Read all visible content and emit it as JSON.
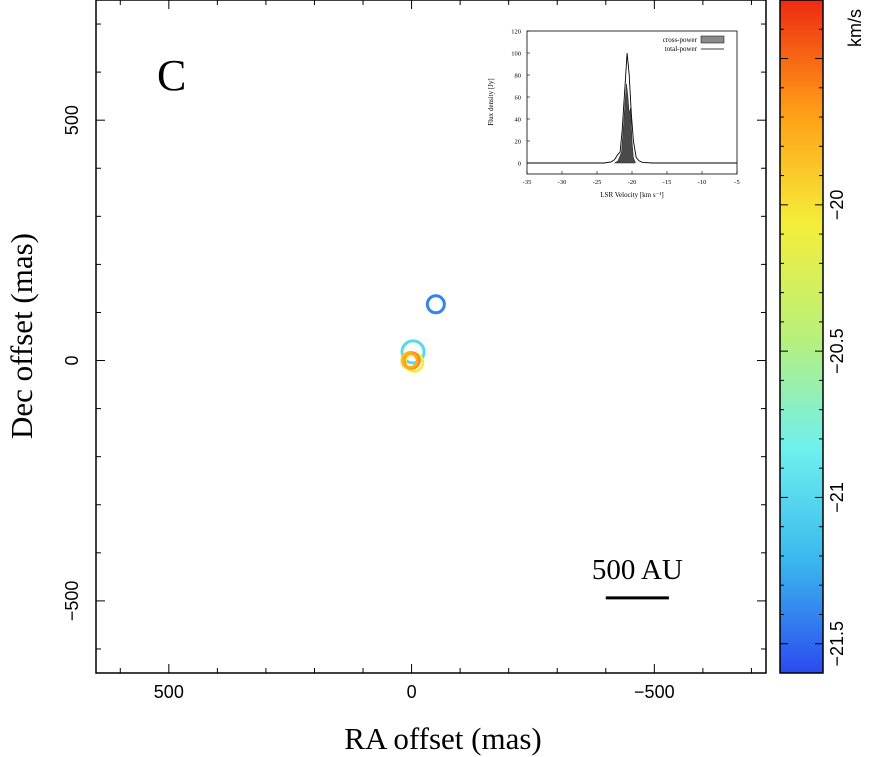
{
  "chart_data": [
    {
      "type": "scatter",
      "panel_label": "C",
      "xlabel": "RA offset (mas)",
      "ylabel": "Dec offset (mas)",
      "xlim": [
        650,
        -730
      ],
      "ylim": [
        -650,
        750
      ],
      "x_ticks": [
        500,
        0,
        -500
      ],
      "y_ticks": [
        500,
        0,
        -500
      ],
      "x_tick_labels": [
        "500",
        "0",
        "−500"
      ],
      "y_tick_labels": [
        "500",
        "0",
        "−500"
      ],
      "grid": false,
      "scale_bar": {
        "label": "500 AU",
        "ra_from": -400,
        "ra_to": -530,
        "dec": -500
      },
      "points": [
        {
          "ra": -50,
          "dec": 117,
          "velocity": -21.4
        },
        {
          "ra": -3,
          "dec": 18,
          "velocity": -21.0
        },
        {
          "ra": -5,
          "dec": -4,
          "velocity": -20.1
        },
        {
          "ra": 3,
          "dec": 0,
          "velocity": -19.95
        },
        {
          "ra": 0,
          "dec": 0,
          "velocity": -19.6
        },
        {
          "ra": 3,
          "dec": 0,
          "velocity": -19.75
        }
      ],
      "colorbar": {
        "label": "km/s",
        "range": [
          -21.6,
          -19.3
        ],
        "ticks": [
          -20,
          -20.5,
          -21,
          -21.5
        ],
        "tick_labels": [
          "−20",
          "−20.5",
          "−21",
          "−21.5"
        ],
        "colors": [
          "#2b4bf0",
          "#3ab8ee",
          "#6ff0ee",
          "#b8f07a",
          "#f5ee3a",
          "#ff9e16",
          "#ee2a12"
        ]
      }
    },
    {
      "type": "area",
      "role": "inset",
      "xlabel": "LSR Velocity [km s⁻¹]",
      "ylabel": "Flux density [Jy]",
      "xlim": [
        -35,
        -5
      ],
      "ylim": [
        -10,
        120
      ],
      "x_ticks": [
        -35,
        -30,
        -25,
        -20,
        -15,
        -10,
        -5
      ],
      "y_ticks": [
        0,
        20,
        40,
        60,
        80,
        100,
        120
      ],
      "legend": [
        "cross-power",
        "total-power"
      ],
      "legend_position": "top-right",
      "series": [
        {
          "name": "cross-power",
          "x": [
            -22.5,
            -22.0,
            -21.5,
            -21.2,
            -21.0,
            -20.8,
            -20.6,
            -20.4,
            -20.2,
            -20.0,
            -19.8,
            -19.5
          ],
          "y": [
            0,
            2,
            10,
            35,
            55,
            72,
            62,
            45,
            50,
            20,
            5,
            0
          ]
        },
        {
          "name": "total-power",
          "x": [
            -35,
            -24,
            -23,
            -22.5,
            -22.2,
            -22.0,
            -21.7,
            -21.4,
            -21.0,
            -20.7,
            -20.4,
            -20.1,
            -19.8,
            -19.4,
            -19.0,
            -18.5,
            -17,
            -5
          ],
          "y": [
            0,
            0,
            1,
            3,
            6,
            8,
            10,
            30,
            70,
            100,
            80,
            45,
            20,
            5,
            2,
            0.5,
            0,
            0
          ]
        }
      ]
    }
  ]
}
